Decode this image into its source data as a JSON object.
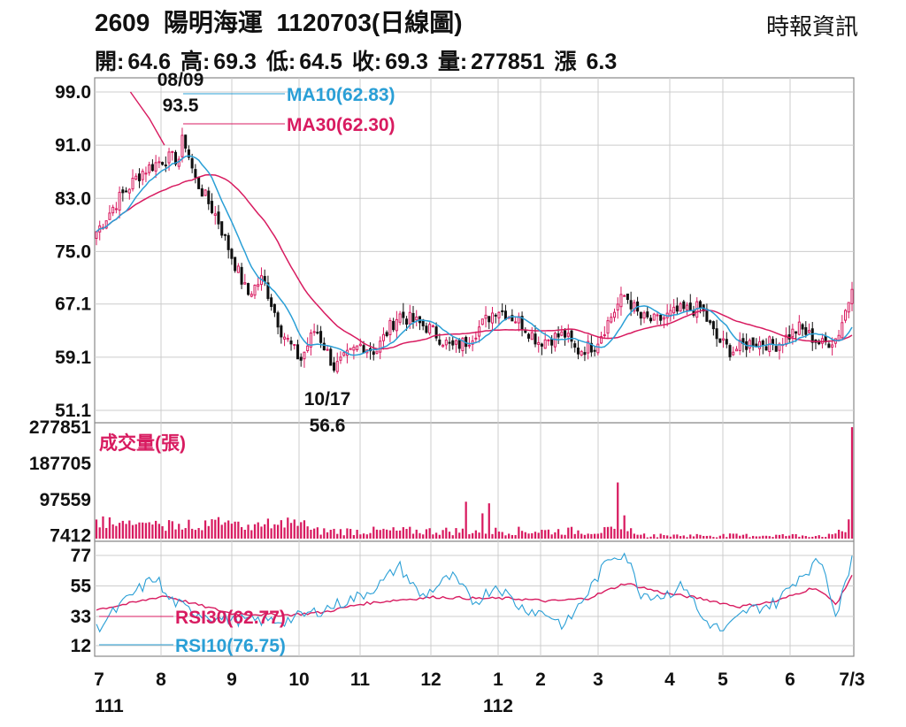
{
  "header": {
    "code": "2609",
    "name": "陽明海運",
    "date_label": "1120703(日線圖)",
    "source": "時報資訊",
    "quote": [
      {
        "label": "開:",
        "value": "64.6"
      },
      {
        "label": "高:",
        "value": "69.3"
      },
      {
        "label": "低:",
        "value": "64.5"
      },
      {
        "label": "收:",
        "value": "69.3"
      },
      {
        "label": "量:",
        "value": "277851"
      },
      {
        "label": "漲 ",
        "value": "6.3"
      }
    ]
  },
  "colors": {
    "candle": "#d81b60",
    "ma10": "#2a9fd6",
    "ma30": "#d81b60",
    "volume": "#d81b60",
    "rsi30": "#d81b60",
    "rsi10": "#2a9fd6",
    "grid": "#cccccc",
    "frame": "#888888"
  },
  "chart_data": [
    {
      "type": "candlestick",
      "panel": "price",
      "y_ticks": [
        "99.0",
        "91.0",
        "83.0",
        "75.0",
        "67.1",
        "59.1",
        "51.1"
      ],
      "ylim": [
        51.1,
        99.0
      ],
      "legend": [
        {
          "name": "MA10",
          "value": "(62.83)",
          "color": "#2a9fd6"
        },
        {
          "name": "MA30",
          "value": "(62.30)",
          "color": "#d81b60"
        }
      ],
      "annotations": [
        {
          "date": "08/09",
          "value": "93.5"
        },
        {
          "date": "10/17",
          "value": "56.6"
        }
      ],
      "close_anchors": [
        [
          0,
          78
        ],
        [
          0.03,
          83
        ],
        [
          0.06,
          87
        ],
        [
          0.09,
          89
        ],
        [
          0.11,
          89
        ],
        [
          0.115,
          92.5
        ],
        [
          0.13,
          86
        ],
        [
          0.16,
          80
        ],
        [
          0.18,
          74
        ],
        [
          0.2,
          68.5
        ],
        [
          0.22,
          71
        ],
        [
          0.245,
          63
        ],
        [
          0.27,
          58.6
        ],
        [
          0.29,
          63.5
        ],
        [
          0.315,
          57.5
        ],
        [
          0.35,
          61
        ],
        [
          0.37,
          60
        ],
        [
          0.385,
          63
        ],
        [
          0.4,
          65.5
        ],
        [
          0.44,
          63.5
        ],
        [
          0.47,
          60.5
        ],
        [
          0.49,
          61.5
        ],
        [
          0.53,
          66.5
        ],
        [
          0.56,
          64.5
        ],
        [
          0.585,
          61.5
        ],
        [
          0.62,
          62.5
        ],
        [
          0.635,
          60
        ],
        [
          0.66,
          61
        ],
        [
          0.69,
          67
        ],
        [
          0.7,
          68.5
        ],
        [
          0.72,
          65
        ],
        [
          0.74,
          64.5
        ],
        [
          0.77,
          66
        ],
        [
          0.8,
          66.5
        ],
        [
          0.82,
          62
        ],
        [
          0.84,
          60
        ],
        [
          0.87,
          61.5
        ],
        [
          0.9,
          61
        ],
        [
          0.93,
          63.5
        ],
        [
          0.96,
          61
        ],
        [
          0.98,
          62
        ],
        [
          1.0,
          69.3
        ]
      ]
    },
    {
      "type": "bar",
      "panel": "volume",
      "title": "成交量(張)",
      "y_ticks": [
        "277851",
        "187705",
        "97559",
        "7412"
      ],
      "ylim": [
        0,
        277851
      ],
      "spikes": [
        [
          0.49,
          92000
        ],
        [
          0.5,
          72000
        ],
        [
          0.51,
          63000
        ],
        [
          0.52,
          88000
        ],
        [
          0.69,
          140000
        ],
        [
          0.7,
          58000
        ],
        [
          0.995,
          277851
        ]
      ]
    },
    {
      "type": "line",
      "panel": "rsi",
      "y_ticks": [
        "77",
        "55",
        "33",
        "12"
      ],
      "ylim": [
        0,
        85
      ],
      "legend": [
        {
          "name": "RSI30",
          "value": "(62.77)",
          "color": "#d81b60"
        },
        {
          "name": "RSI10",
          "value": "(76.75)",
          "color": "#2a9fd6"
        }
      ],
      "rsi10_anchors": [
        [
          0,
          24
        ],
        [
          0.05,
          50
        ],
        [
          0.08,
          62
        ],
        [
          0.09,
          48
        ],
        [
          0.12,
          38
        ],
        [
          0.16,
          32
        ],
        [
          0.2,
          30
        ],
        [
          0.25,
          30
        ],
        [
          0.3,
          38
        ],
        [
          0.35,
          48
        ],
        [
          0.38,
          58
        ],
        [
          0.4,
          70
        ],
        [
          0.43,
          47
        ],
        [
          0.47,
          62
        ],
        [
          0.5,
          43
        ],
        [
          0.53,
          56
        ],
        [
          0.56,
          40
        ],
        [
          0.6,
          34
        ],
        [
          0.62,
          26
        ],
        [
          0.65,
          50
        ],
        [
          0.68,
          76
        ],
        [
          0.7,
          79
        ],
        [
          0.72,
          50
        ],
        [
          0.75,
          48
        ],
        [
          0.78,
          56
        ],
        [
          0.8,
          32
        ],
        [
          0.83,
          22
        ],
        [
          0.86,
          37
        ],
        [
          0.9,
          43
        ],
        [
          0.93,
          62
        ],
        [
          0.96,
          74
        ],
        [
          0.98,
          32
        ],
        [
          1.0,
          76.75
        ]
      ],
      "rsi30_anchors": [
        [
          0,
          38
        ],
        [
          0.05,
          43
        ],
        [
          0.09,
          48
        ],
        [
          0.13,
          42
        ],
        [
          0.18,
          35
        ],
        [
          0.25,
          34
        ],
        [
          0.3,
          36
        ],
        [
          0.35,
          42
        ],
        [
          0.4,
          45
        ],
        [
          0.45,
          47
        ],
        [
          0.5,
          46
        ],
        [
          0.55,
          46
        ],
        [
          0.6,
          44
        ],
        [
          0.65,
          46
        ],
        [
          0.7,
          57
        ],
        [
          0.75,
          50
        ],
        [
          0.8,
          46
        ],
        [
          0.85,
          40
        ],
        [
          0.9,
          44
        ],
        [
          0.95,
          54
        ],
        [
          0.98,
          42
        ],
        [
          1.0,
          62.77
        ]
      ]
    }
  ],
  "x_axis": {
    "months": [
      "7",
      "8",
      "9",
      "10",
      "11",
      "12",
      "1",
      "2",
      "3",
      "4",
      "5",
      "6",
      "7/3"
    ],
    "years": [
      "111",
      "112"
    ]
  }
}
